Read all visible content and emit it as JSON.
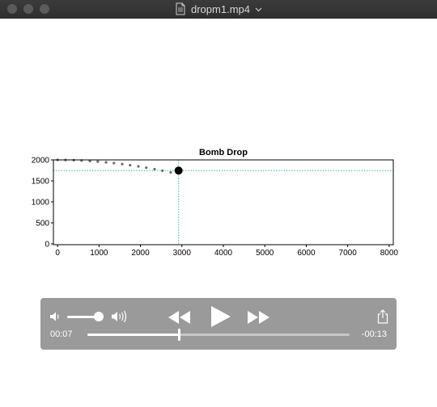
{
  "window": {
    "title": "dropm1.mp4",
    "icons": {
      "file": "document-icon",
      "menu": "chevron-down-icon"
    }
  },
  "chart_data": {
    "type": "scatter",
    "title": "Bomb Drop",
    "xlabel": "",
    "ylabel": "",
    "xlim": [
      -100,
      8100
    ],
    "ylim": [
      -20,
      2000
    ],
    "xticks": [
      0,
      1000,
      2000,
      3000,
      4000,
      5000,
      6000,
      7000,
      8000
    ],
    "yticks": [
      0,
      500,
      1000,
      1500,
      2000
    ],
    "grid": false,
    "series": [
      {
        "role": "trail",
        "color": "#6b6b6b",
        "x": [
          0,
          190,
          390,
          580,
          780,
          970,
          1170,
          1360,
          1560,
          1750,
          1950,
          2140,
          2340,
          2530,
          2730
        ],
        "y": [
          2000,
          1998,
          1993,
          1985,
          1974,
          1960,
          1943,
          1923,
          1900,
          1874,
          1846,
          1814,
          1779,
          1742,
          1701
        ]
      },
      {
        "role": "current",
        "color": "#000000",
        "x": [
          2920
        ],
        "y": [
          1745
        ]
      }
    ],
    "crosshair": {
      "x": 2920,
      "y": 1745,
      "color": "#3fbfa0",
      "style": "dotted"
    }
  },
  "player": {
    "elapsed": "00:07",
    "remaining": "-00:13",
    "progress": 0.35,
    "volume": 0.9,
    "icons": {
      "volume_low": "speaker-low-icon",
      "volume_high": "speaker-high-icon",
      "rewind": "rewind-icon",
      "play": "play-icon",
      "fast_forward": "fast-forward-icon",
      "share": "share-icon"
    }
  }
}
